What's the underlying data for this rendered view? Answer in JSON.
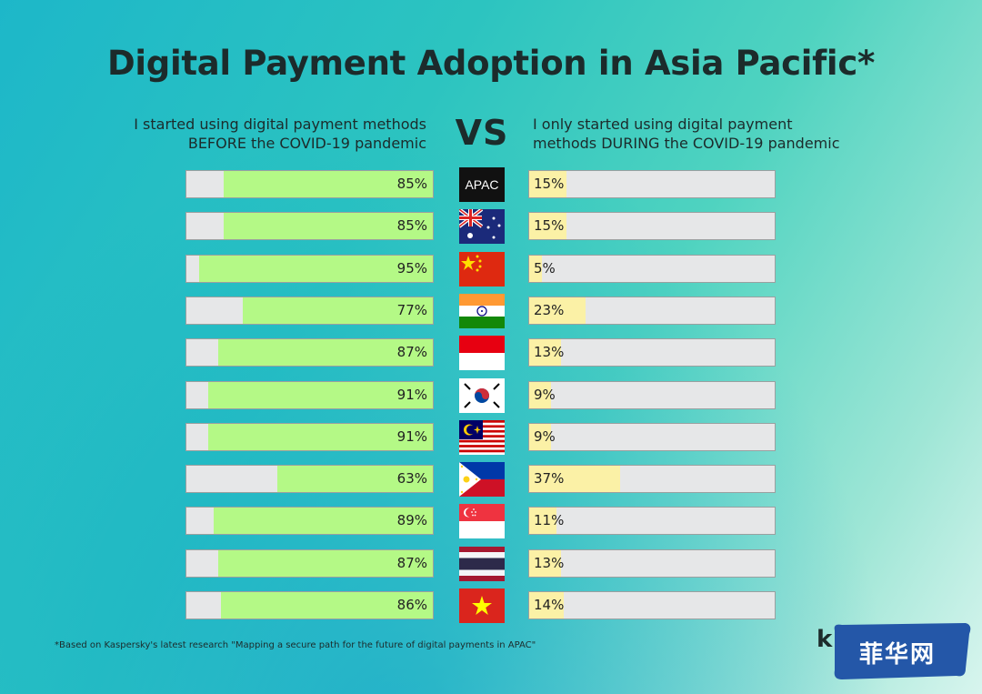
{
  "title": "Digital Payment Adoption in Asia Pacific*",
  "header_left": {
    "line1": "I started using digital payment methods",
    "line2": "BEFORE the COVID-19 pandemic"
  },
  "vs": "VS",
  "header_right": {
    "line1": "I only started using digital payment",
    "line2": "methods DURING the COVID-19 pandemic"
  },
  "footnote": "*Based on Kaspersky's latest research \"Mapping a secure path for the future of digital payments in APAC\"",
  "logo_text": "k",
  "watermark_text": "菲华网",
  "colors": {
    "before_fill": "#b4f986",
    "during_fill": "#fbf1a6",
    "bar_track": "#e6e7e8"
  },
  "flags": [
    "apac-badge",
    "australia-flag",
    "china-flag",
    "india-flag",
    "indonesia-flag",
    "south-korea-flag",
    "malaysia-flag",
    "philippines-flag",
    "singapore-flag",
    "thailand-flag",
    "vietnam-flag"
  ],
  "apac_label": "APAC",
  "chart_data": {
    "type": "bar",
    "orientation": "horizontal-diverging",
    "categories": [
      "APAC",
      "Australia",
      "China",
      "India",
      "Indonesia",
      "South Korea",
      "Malaysia",
      "Philippines",
      "Singapore",
      "Thailand",
      "Vietnam"
    ],
    "series": [
      {
        "name": "I started using digital payment methods BEFORE the COVID-19 pandemic",
        "values": [
          85,
          85,
          95,
          77,
          87,
          91,
          91,
          63,
          89,
          87,
          86
        ],
        "labels": [
          "85%",
          "85%",
          "95%",
          "77%",
          "87%",
          "91%",
          "91%",
          "63%",
          "89%",
          "87%",
          "86%"
        ]
      },
      {
        "name": "I only started using digital payment methods DURING the COVID-19 pandemic",
        "values": [
          15,
          15,
          5,
          23,
          13,
          9,
          9,
          37,
          11,
          13,
          14
        ],
        "labels": [
          "15%",
          "15%",
          "5%",
          "23%",
          "13%",
          "9%",
          "9%",
          "37%",
          "11%",
          "13%",
          "14%"
        ]
      }
    ],
    "unit": "%",
    "xlim": [
      0,
      100
    ]
  }
}
